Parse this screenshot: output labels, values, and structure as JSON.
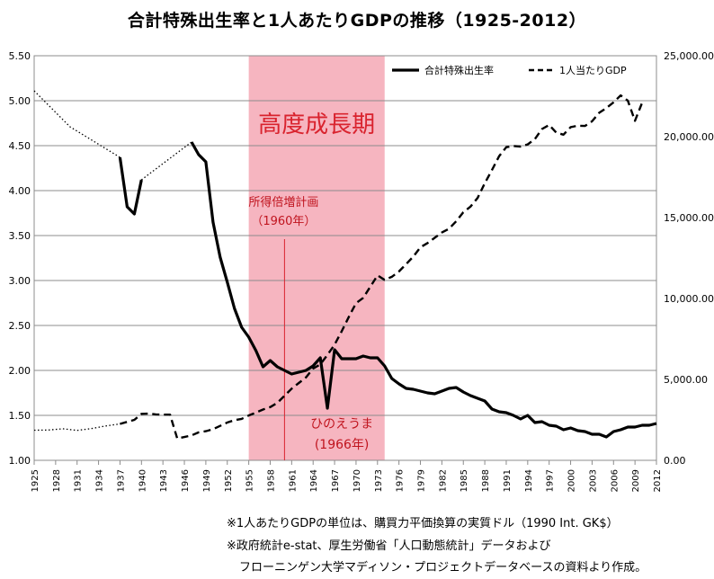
{
  "chart_data": {
    "type": "line",
    "title": "合計特殊出生率と1人あたりGDPの推移（1925-2012）",
    "x_ticks": [
      1925,
      1928,
      1931,
      1934,
      1937,
      1940,
      1943,
      1946,
      1949,
      1952,
      1955,
      1958,
      1961,
      1964,
      1967,
      1970,
      1973,
      1976,
      1979,
      1982,
      1985,
      1988,
      1991,
      1994,
      1997,
      2000,
      2003,
      2006,
      2009,
      2012
    ],
    "xlim": [
      1925,
      2012
    ],
    "y_left": {
      "ylim": [
        1.0,
        5.5
      ],
      "ticks": [
        "1.00",
        "1.50",
        "2.00",
        "2.50",
        "3.00",
        "3.50",
        "4.00",
        "4.50",
        "5.00",
        "5.50"
      ]
    },
    "y_right": {
      "ylim": [
        0,
        25000
      ],
      "ticks": [
        "0.00",
        "5,000.00",
        "10,000.00",
        "15,000.00",
        "20,000.00",
        "25,000.00"
      ]
    },
    "grid": true,
    "legend_position": "top-right",
    "series": [
      {
        "name": "合計特殊出生率",
        "axis": "left",
        "style": "solid",
        "points": [
          [
            1925,
            5.11
          ],
          [
            1930,
            4.71
          ],
          [
            1937,
            4.37
          ],
          [
            1937,
            4.37
          ],
          [
            1938,
            3.82
          ],
          [
            1939,
            3.74
          ],
          [
            1940,
            4.12
          ],
          [
            1940,
            4.12
          ],
          [
            1947,
            4.54
          ],
          [
            1947,
            4.54
          ],
          [
            1948,
            4.4
          ],
          [
            1949,
            4.32
          ],
          [
            1950,
            3.65
          ],
          [
            1951,
            3.26
          ],
          [
            1952,
            2.98
          ],
          [
            1953,
            2.69
          ],
          [
            1954,
            2.48
          ],
          [
            1955,
            2.37
          ],
          [
            1956,
            2.22
          ],
          [
            1957,
            2.04
          ],
          [
            1958,
            2.11
          ],
          [
            1959,
            2.04
          ],
          [
            1960,
            2.0
          ],
          [
            1961,
            1.96
          ],
          [
            1962,
            1.98
          ],
          [
            1963,
            2.0
          ],
          [
            1964,
            2.05
          ],
          [
            1965,
            2.14
          ],
          [
            1966,
            1.58
          ],
          [
            1967,
            2.23
          ],
          [
            1968,
            2.13
          ],
          [
            1969,
            2.13
          ],
          [
            1970,
            2.13
          ],
          [
            1971,
            2.16
          ],
          [
            1972,
            2.14
          ],
          [
            1973,
            2.14
          ],
          [
            1974,
            2.05
          ],
          [
            1975,
            1.91
          ],
          [
            1976,
            1.85
          ],
          [
            1977,
            1.8
          ],
          [
            1978,
            1.79
          ],
          [
            1979,
            1.77
          ],
          [
            1980,
            1.75
          ],
          [
            1981,
            1.74
          ],
          [
            1982,
            1.77
          ],
          [
            1983,
            1.8
          ],
          [
            1984,
            1.81
          ],
          [
            1985,
            1.76
          ],
          [
            1986,
            1.72
          ],
          [
            1987,
            1.69
          ],
          [
            1988,
            1.66
          ],
          [
            1989,
            1.57
          ],
          [
            1990,
            1.54
          ],
          [
            1991,
            1.53
          ],
          [
            1992,
            1.5
          ],
          [
            1993,
            1.46
          ],
          [
            1994,
            1.5
          ],
          [
            1995,
            1.42
          ],
          [
            1996,
            1.43
          ],
          [
            1997,
            1.39
          ],
          [
            1998,
            1.38
          ],
          [
            1999,
            1.34
          ],
          [
            2000,
            1.36
          ],
          [
            2001,
            1.33
          ],
          [
            2002,
            1.32
          ],
          [
            2003,
            1.29
          ],
          [
            2004,
            1.29
          ],
          [
            2005,
            1.26
          ],
          [
            2006,
            1.32
          ],
          [
            2007,
            1.34
          ],
          [
            2008,
            1.37
          ],
          [
            2009,
            1.37
          ],
          [
            2010,
            1.39
          ],
          [
            2011,
            1.39
          ],
          [
            2012,
            1.41
          ]
        ],
        "dotted_segments": [
          [
            1925,
            1937
          ],
          [
            1940,
            1947
          ]
        ]
      },
      {
        "name": "1人当たりGDP",
        "axis": "right",
        "style": "dashed",
        "points": [
          [
            1925,
            1860
          ],
          [
            1927,
            1870
          ],
          [
            1929,
            1950
          ],
          [
            1931,
            1850
          ],
          [
            1933,
            1960
          ],
          [
            1935,
            2120
          ],
          [
            1937,
            2250
          ],
          [
            1939,
            2500
          ],
          [
            1940,
            2870
          ],
          [
            1941,
            2890
          ],
          [
            1942,
            2840
          ],
          [
            1943,
            2820
          ],
          [
            1944,
            2820
          ],
          [
            1945,
            1350
          ],
          [
            1946,
            1440
          ],
          [
            1947,
            1540
          ],
          [
            1948,
            1730
          ],
          [
            1949,
            1800
          ],
          [
            1950,
            1920
          ],
          [
            1951,
            2130
          ],
          [
            1952,
            2340
          ],
          [
            1953,
            2480
          ],
          [
            1954,
            2560
          ],
          [
            1955,
            2770
          ],
          [
            1956,
            2950
          ],
          [
            1957,
            3140
          ],
          [
            1958,
            3290
          ],
          [
            1959,
            3550
          ],
          [
            1960,
            3990
          ],
          [
            1961,
            4430
          ],
          [
            1962,
            4780
          ],
          [
            1963,
            5130
          ],
          [
            1964,
            5670
          ],
          [
            1965,
            5930
          ],
          [
            1966,
            6510
          ],
          [
            1967,
            7150
          ],
          [
            1968,
            7980
          ],
          [
            1969,
            8870
          ],
          [
            1970,
            9710
          ],
          [
            1971,
            10040
          ],
          [
            1972,
            10730
          ],
          [
            1973,
            11430
          ],
          [
            1974,
            11150
          ],
          [
            1975,
            11340
          ],
          [
            1976,
            11670
          ],
          [
            1977,
            12120
          ],
          [
            1978,
            12590
          ],
          [
            1979,
            13160
          ],
          [
            1980,
            13430
          ],
          [
            1981,
            13750
          ],
          [
            1982,
            14080
          ],
          [
            1983,
            14310
          ],
          [
            1984,
            14770
          ],
          [
            1985,
            15330
          ],
          [
            1986,
            15680
          ],
          [
            1987,
            16210
          ],
          [
            1988,
            17120
          ],
          [
            1989,
            17940
          ],
          [
            1990,
            18790
          ],
          [
            1991,
            19350
          ],
          [
            1992,
            19420
          ],
          [
            1993,
            19390
          ],
          [
            1994,
            19520
          ],
          [
            1995,
            19850
          ],
          [
            1996,
            20470
          ],
          [
            1997,
            20720
          ],
          [
            1998,
            20250
          ],
          [
            1999,
            20120
          ],
          [
            2000,
            20590
          ],
          [
            2001,
            20680
          ],
          [
            2002,
            20660
          ],
          [
            2003,
            20950
          ],
          [
            2004,
            21480
          ],
          [
            2005,
            21770
          ],
          [
            2006,
            22120
          ],
          [
            2007,
            22550
          ],
          [
            2008,
            22220
          ],
          [
            2009,
            20980
          ],
          [
            2010,
            22100
          ]
        ],
        "dotted_segments": [
          [
            1925,
            1937
          ]
        ]
      }
    ],
    "shaded_region": {
      "x": [
        1955,
        1974
      ],
      "label": "高度成長期",
      "color": "#f4a3b0"
    },
    "annotations": [
      {
        "text": "所得倍増計画",
        "subtext": "（1960年）",
        "x": 1960
      },
      {
        "text": "ひのえうま",
        "subtext": "(1966年)",
        "x": 1966
      }
    ]
  },
  "notes": [
    "※1人あたりGDPの単位は、購買力平価換算の実質ドル（1990 Int. GK$）",
    "※政府統計e-stat、厚生労働省「人口動態統計」データおよび",
    "フローニンゲン大学マディソン・プロジェクトデータベースの資料より作成。"
  ]
}
